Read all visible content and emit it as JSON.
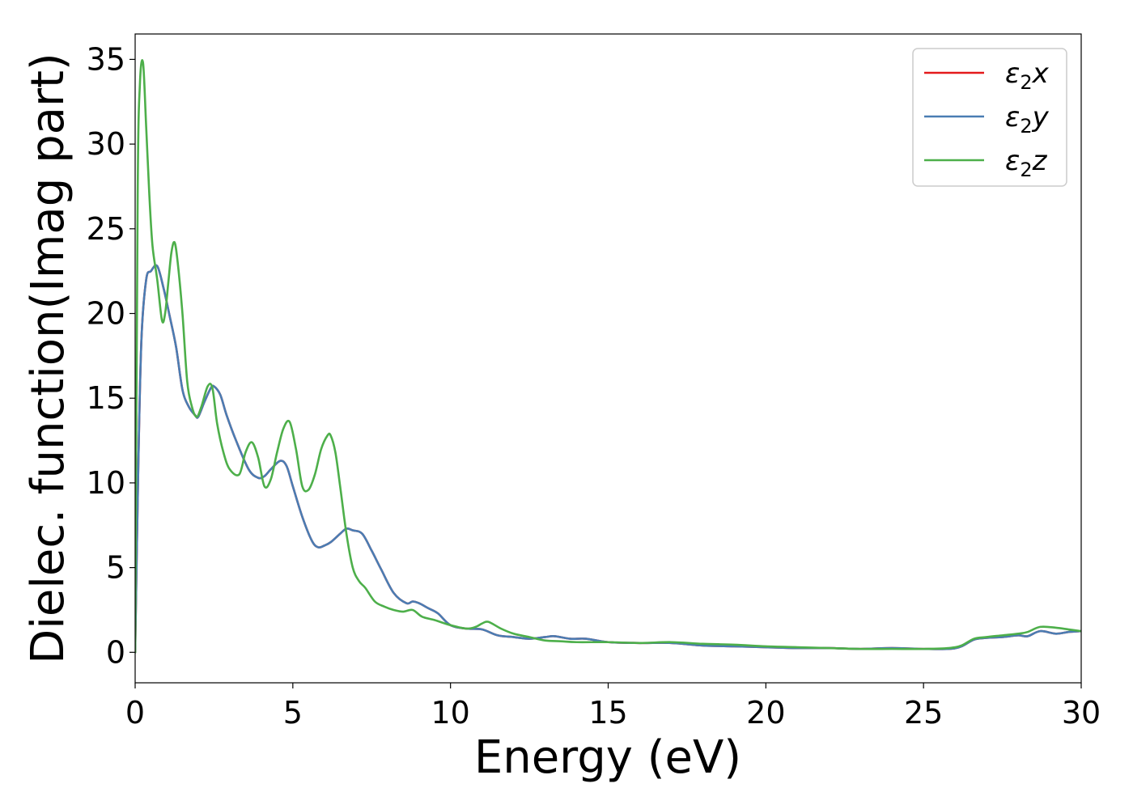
{
  "chart_data": {
    "type": "line",
    "title": "",
    "xlabel": "Energy (eV)",
    "ylabel": "Dielec. function(Imag part)",
    "xlim": [
      0,
      30
    ],
    "ylim": [
      -1.8,
      36.5
    ],
    "xticks": [
      0,
      5,
      10,
      15,
      20,
      25,
      30
    ],
    "yticks": [
      0,
      5,
      10,
      15,
      20,
      25,
      30,
      35
    ],
    "grid": false,
    "legend_position": "top-right",
    "series": [
      {
        "name": "ε2x",
        "legend_base": "ε",
        "legend_sub": "2",
        "legend_suffix": "x",
        "color": "#e41a1c",
        "x": [
          0,
          0.1,
          0.2,
          0.35,
          0.5,
          0.7,
          0.9,
          1.1,
          1.3,
          1.5,
          1.7,
          1.9,
          2.0,
          2.2,
          2.4,
          2.5,
          2.7,
          2.9,
          3.2,
          3.6,
          3.9,
          4.1,
          4.3,
          4.6,
          4.8,
          5.0,
          5.3,
          5.6,
          5.8,
          6.0,
          6.2,
          6.5,
          6.7,
          6.9,
          7.2,
          7.5,
          7.8,
          8.2,
          8.6,
          8.8,
          9.0,
          9.3,
          9.6,
          10.0,
          10.5,
          11.0,
          11.5,
          12.0,
          12.5,
          13.0,
          13.3,
          13.8,
          14.3,
          15.0,
          16.0,
          17.0,
          18.0,
          19.0,
          20.0,
          21.0,
          22.0,
          23.0,
          24.0,
          25.0,
          25.8,
          26.2,
          26.6,
          27.0,
          27.5,
          28.0,
          28.3,
          28.7,
          29.2,
          29.6,
          30.0
        ],
        "y": [
          0,
          11,
          18.5,
          22.0,
          22.5,
          22.8,
          21.5,
          19.8,
          18.0,
          15.5,
          14.5,
          14.0,
          13.9,
          14.8,
          15.6,
          15.7,
          15.2,
          14.0,
          12.5,
          10.8,
          10.3,
          10.4,
          10.8,
          11.3,
          11.0,
          9.8,
          8.0,
          6.6,
          6.2,
          6.3,
          6.5,
          7.0,
          7.3,
          7.2,
          7.0,
          6.0,
          4.9,
          3.5,
          2.9,
          3.0,
          2.9,
          2.6,
          2.3,
          1.6,
          1.4,
          1.35,
          1.0,
          0.9,
          0.8,
          0.9,
          0.95,
          0.8,
          0.8,
          0.6,
          0.55,
          0.55,
          0.4,
          0.35,
          0.3,
          0.25,
          0.25,
          0.2,
          0.25,
          0.2,
          0.2,
          0.35,
          0.75,
          0.85,
          0.9,
          1.0,
          0.95,
          1.25,
          1.1,
          1.2,
          1.25
        ]
      },
      {
        "name": "ε2y",
        "legend_base": "ε",
        "legend_sub": "2",
        "legend_suffix": "y",
        "color": "#4a7db3",
        "x": [
          0,
          0.1,
          0.2,
          0.35,
          0.5,
          0.7,
          0.9,
          1.1,
          1.3,
          1.5,
          1.7,
          1.9,
          2.0,
          2.2,
          2.4,
          2.5,
          2.7,
          2.9,
          3.2,
          3.6,
          3.9,
          4.1,
          4.3,
          4.6,
          4.8,
          5.0,
          5.3,
          5.6,
          5.8,
          6.0,
          6.2,
          6.5,
          6.7,
          6.9,
          7.2,
          7.5,
          7.8,
          8.2,
          8.6,
          8.8,
          9.0,
          9.3,
          9.6,
          10.0,
          10.5,
          11.0,
          11.5,
          12.0,
          12.5,
          13.0,
          13.3,
          13.8,
          14.3,
          15.0,
          16.0,
          17.0,
          18.0,
          19.0,
          20.0,
          21.0,
          22.0,
          23.0,
          24.0,
          25.0,
          25.8,
          26.2,
          26.6,
          27.0,
          27.5,
          28.0,
          28.3,
          28.7,
          29.2,
          29.6,
          30.0
        ],
        "y": [
          0,
          11,
          18.5,
          22.0,
          22.5,
          22.8,
          21.5,
          19.8,
          18.0,
          15.5,
          14.5,
          14.0,
          13.9,
          14.8,
          15.6,
          15.7,
          15.2,
          14.0,
          12.5,
          10.8,
          10.3,
          10.4,
          10.8,
          11.3,
          11.0,
          9.8,
          8.0,
          6.6,
          6.2,
          6.3,
          6.5,
          7.0,
          7.3,
          7.2,
          7.0,
          6.0,
          4.9,
          3.5,
          2.9,
          3.0,
          2.9,
          2.6,
          2.3,
          1.6,
          1.4,
          1.35,
          1.0,
          0.9,
          0.8,
          0.9,
          0.95,
          0.8,
          0.8,
          0.6,
          0.55,
          0.55,
          0.4,
          0.35,
          0.3,
          0.25,
          0.25,
          0.2,
          0.25,
          0.2,
          0.2,
          0.35,
          0.75,
          0.85,
          0.9,
          1.0,
          0.95,
          1.25,
          1.1,
          1.2,
          1.25
        ]
      },
      {
        "name": "ε2z",
        "legend_base": "ε",
        "legend_sub": "2",
        "legend_suffix": "z",
        "color": "#4daf4a",
        "x": [
          0,
          0.08,
          0.15,
          0.25,
          0.35,
          0.45,
          0.55,
          0.7,
          0.85,
          0.95,
          1.05,
          1.15,
          1.25,
          1.35,
          1.5,
          1.65,
          1.8,
          1.95,
          2.1,
          2.3,
          2.45,
          2.6,
          2.8,
          3.0,
          3.3,
          3.5,
          3.7,
          3.9,
          4.1,
          4.3,
          4.5,
          4.7,
          4.9,
          5.1,
          5.3,
          5.5,
          5.7,
          5.9,
          6.1,
          6.2,
          6.35,
          6.5,
          6.7,
          6.9,
          7.1,
          7.3,
          7.6,
          7.9,
          8.2,
          8.5,
          8.8,
          9.1,
          9.5,
          10.0,
          10.5,
          10.8,
          11.0,
          11.2,
          11.6,
          12.0,
          12.5,
          13.0,
          13.5,
          14.0,
          15.0,
          16.0,
          17.0,
          18.0,
          19.0,
          20.0,
          21.0,
          22.0,
          23.0,
          24.0,
          25.0,
          25.8,
          26.2,
          26.6,
          27.0,
          27.5,
          28.0,
          28.3,
          28.7,
          29.2,
          29.6,
          30.0
        ],
        "y": [
          0,
          27,
          33.5,
          34.8,
          31.0,
          27.0,
          24.0,
          22.0,
          19.6,
          20.0,
          21.8,
          23.6,
          24.2,
          23.0,
          20.0,
          16.0,
          14.5,
          13.9,
          14.5,
          15.7,
          15.6,
          13.5,
          11.8,
          10.8,
          10.5,
          11.8,
          12.4,
          11.5,
          9.8,
          10.2,
          11.8,
          13.2,
          13.6,
          12.0,
          9.8,
          9.6,
          10.5,
          12.0,
          12.8,
          12.8,
          11.8,
          9.8,
          7.0,
          5.0,
          4.2,
          3.8,
          3.0,
          2.7,
          2.5,
          2.4,
          2.5,
          2.1,
          1.9,
          1.6,
          1.4,
          1.5,
          1.7,
          1.8,
          1.4,
          1.1,
          0.9,
          0.7,
          0.65,
          0.6,
          0.6,
          0.55,
          0.6,
          0.5,
          0.45,
          0.35,
          0.3,
          0.25,
          0.2,
          0.2,
          0.2,
          0.25,
          0.4,
          0.8,
          0.9,
          1.0,
          1.1,
          1.2,
          1.5,
          1.45,
          1.35,
          1.25
        ]
      }
    ]
  }
}
